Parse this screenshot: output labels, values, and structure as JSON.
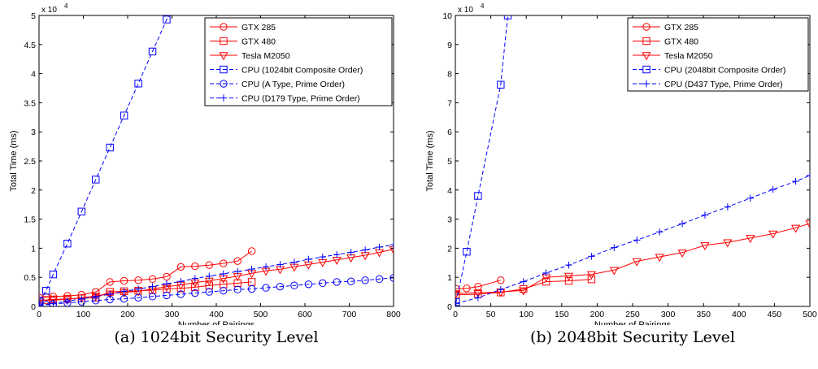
{
  "captions": {
    "a": "(a) 1024bit Security Level",
    "b": "(b) 2048bit Security Level"
  },
  "colors": {
    "gpu": "#ff0000",
    "cpu": "#0000ff"
  },
  "chart_data": [
    {
      "type": "line",
      "title": "",
      "xlabel": "Number of Pairings",
      "ylabel": "Total Time (ms)",
      "y_multiplier": "x 10",
      "y_multiplier_exp": "4",
      "xlim": [
        0,
        800
      ],
      "ylim": [
        0,
        5
      ],
      "xticks": [
        0,
        100,
        200,
        300,
        400,
        500,
        600,
        700,
        800
      ],
      "yticks": [
        0,
        0.5,
        1,
        1.5,
        2,
        2.5,
        3,
        3.5,
        4,
        4.5,
        5
      ],
      "grid": false,
      "legend_position": "top-right",
      "series": [
        {
          "name": "GTX 285",
          "color": "#ff0000",
          "marker": "circle",
          "dashed": false,
          "x": [
            1,
            16,
            32,
            64,
            96,
            128,
            160,
            192,
            224,
            256,
            288,
            320,
            352,
            384,
            416,
            448,
            480
          ],
          "y": [
            0.15,
            0.16,
            0.17,
            0.18,
            0.2,
            0.25,
            0.42,
            0.44,
            0.45,
            0.47,
            0.51,
            0.68,
            0.69,
            0.71,
            0.74,
            0.78,
            0.95
          ]
        },
        {
          "name": "GTX 480",
          "color": "#ff0000",
          "marker": "square",
          "dashed": false,
          "x": [
            1,
            16,
            32,
            64,
            96,
            128,
            160,
            192,
            224,
            256,
            288,
            320,
            352,
            384,
            416,
            448,
            480
          ],
          "y": [
            0.1,
            0.11,
            0.12,
            0.13,
            0.14,
            0.15,
            0.25,
            0.26,
            0.27,
            0.28,
            0.3,
            0.31,
            0.33,
            0.36,
            0.38,
            0.4,
            0.42
          ]
        },
        {
          "name": "Tesla M2050",
          "color": "#ff0000",
          "marker": "triangle-down",
          "dashed": false,
          "x": [
            1,
            32,
            64,
            96,
            128,
            160,
            192,
            224,
            256,
            288,
            320,
            352,
            384,
            416,
            448,
            480,
            512,
            544,
            576,
            608,
            640,
            672,
            704,
            736,
            768,
            800
          ],
          "y": [
            0.1,
            0.11,
            0.12,
            0.15,
            0.18,
            0.22,
            0.24,
            0.26,
            0.3,
            0.34,
            0.37,
            0.41,
            0.44,
            0.48,
            0.52,
            0.57,
            0.61,
            0.64,
            0.68,
            0.72,
            0.76,
            0.8,
            0.84,
            0.88,
            0.93,
            0.98
          ]
        },
        {
          "name": "CPU (1024bit Composite Order)",
          "color": "#0000ff",
          "marker": "square",
          "dashed": true,
          "x": [
            1,
            16,
            32,
            64,
            96,
            128,
            160,
            192,
            224,
            256,
            288,
            300
          ],
          "y": [
            0.1,
            0.27,
            0.55,
            1.08,
            1.63,
            2.18,
            2.73,
            3.28,
            3.83,
            4.38,
            4.93,
            5.05
          ]
        },
        {
          "name": "CPU (A Type, Prime Order)",
          "color": "#0000ff",
          "marker": "circle",
          "dashed": true,
          "x": [
            1,
            16,
            32,
            64,
            96,
            128,
            160,
            192,
            224,
            256,
            288,
            320,
            352,
            384,
            416,
            448,
            480,
            512,
            544,
            576,
            608,
            640,
            672,
            704,
            736,
            768,
            800
          ],
          "y": [
            0.02,
            0.03,
            0.04,
            0.06,
            0.08,
            0.1,
            0.12,
            0.13,
            0.15,
            0.17,
            0.19,
            0.21,
            0.23,
            0.25,
            0.27,
            0.29,
            0.3,
            0.32,
            0.34,
            0.36,
            0.38,
            0.4,
            0.42,
            0.43,
            0.45,
            0.47,
            0.49
          ]
        },
        {
          "name": "CPU (D179 Type, Prime Order)",
          "color": "#0000ff",
          "marker": "plus",
          "dashed": true,
          "x": [
            1,
            32,
            64,
            96,
            128,
            160,
            192,
            224,
            256,
            288,
            320,
            352,
            384,
            416,
            448,
            480,
            512,
            544,
            576,
            608,
            640,
            672,
            704,
            736,
            768,
            800
          ],
          "y": [
            0.02,
            0.05,
            0.09,
            0.13,
            0.17,
            0.21,
            0.26,
            0.3,
            0.34,
            0.39,
            0.43,
            0.48,
            0.52,
            0.56,
            0.6,
            0.64,
            0.68,
            0.72,
            0.76,
            0.81,
            0.85,
            0.89,
            0.93,
            0.97,
            1.02,
            1.06
          ]
        }
      ]
    },
    {
      "type": "line",
      "title": "",
      "xlabel": "Number of Pairings",
      "ylabel": "Total Time (ms)",
      "y_multiplier": "x 10",
      "y_multiplier_exp": "4",
      "xlim": [
        0,
        500
      ],
      "ylim": [
        0,
        10
      ],
      "xticks": [
        0,
        50,
        100,
        150,
        200,
        250,
        300,
        350,
        400,
        450,
        500
      ],
      "yticks": [
        0,
        1,
        2,
        3,
        4,
        5,
        6,
        7,
        8,
        9,
        10
      ],
      "grid": false,
      "legend_position": "top-right",
      "series": [
        {
          "name": "GTX 285",
          "color": "#ff0000",
          "marker": "circle",
          "dashed": false,
          "x": [
            1,
            16,
            32,
            64
          ],
          "y": [
            0.6,
            0.62,
            0.68,
            0.9
          ]
        },
        {
          "name": "GTX 480",
          "color": "#ff0000",
          "marker": "square",
          "dashed": false,
          "x": [
            1,
            32,
            64,
            96,
            128,
            160,
            192
          ],
          "y": [
            0.4,
            0.42,
            0.48,
            0.6,
            0.85,
            0.88,
            0.93
          ]
        },
        {
          "name": "Tesla M2050",
          "color": "#ff0000",
          "marker": "triangle-down",
          "dashed": false,
          "x": [
            1,
            32,
            64,
            96,
            128,
            160,
            192,
            224,
            256,
            288,
            320,
            352,
            384,
            416,
            448,
            480,
            500
          ],
          "y": [
            0.45,
            0.47,
            0.5,
            0.55,
            1.0,
            1.05,
            1.1,
            1.25,
            1.55,
            1.7,
            1.85,
            2.1,
            2.2,
            2.35,
            2.5,
            2.7,
            2.85
          ]
        },
        {
          "name": "CPU (2048bit Composite Order)",
          "color": "#0000ff",
          "marker": "square",
          "dashed": true,
          "x": [
            1,
            16,
            32,
            64,
            74
          ],
          "y": [
            0.15,
            1.88,
            3.8,
            7.62,
            10
          ]
        },
        {
          "name": "CPU (D437 Type, Prime Order)",
          "color": "#0000ff",
          "marker": "plus",
          "dashed": true,
          "x": [
            1,
            32,
            64,
            96,
            128,
            160,
            192,
            224,
            256,
            288,
            320,
            352,
            384,
            416,
            448,
            480,
            500
          ],
          "y": [
            0.1,
            0.3,
            0.58,
            0.85,
            1.15,
            1.42,
            1.72,
            2.02,
            2.28,
            2.56,
            2.84,
            3.14,
            3.42,
            3.72,
            4.02,
            4.3,
            4.5
          ]
        }
      ]
    }
  ]
}
